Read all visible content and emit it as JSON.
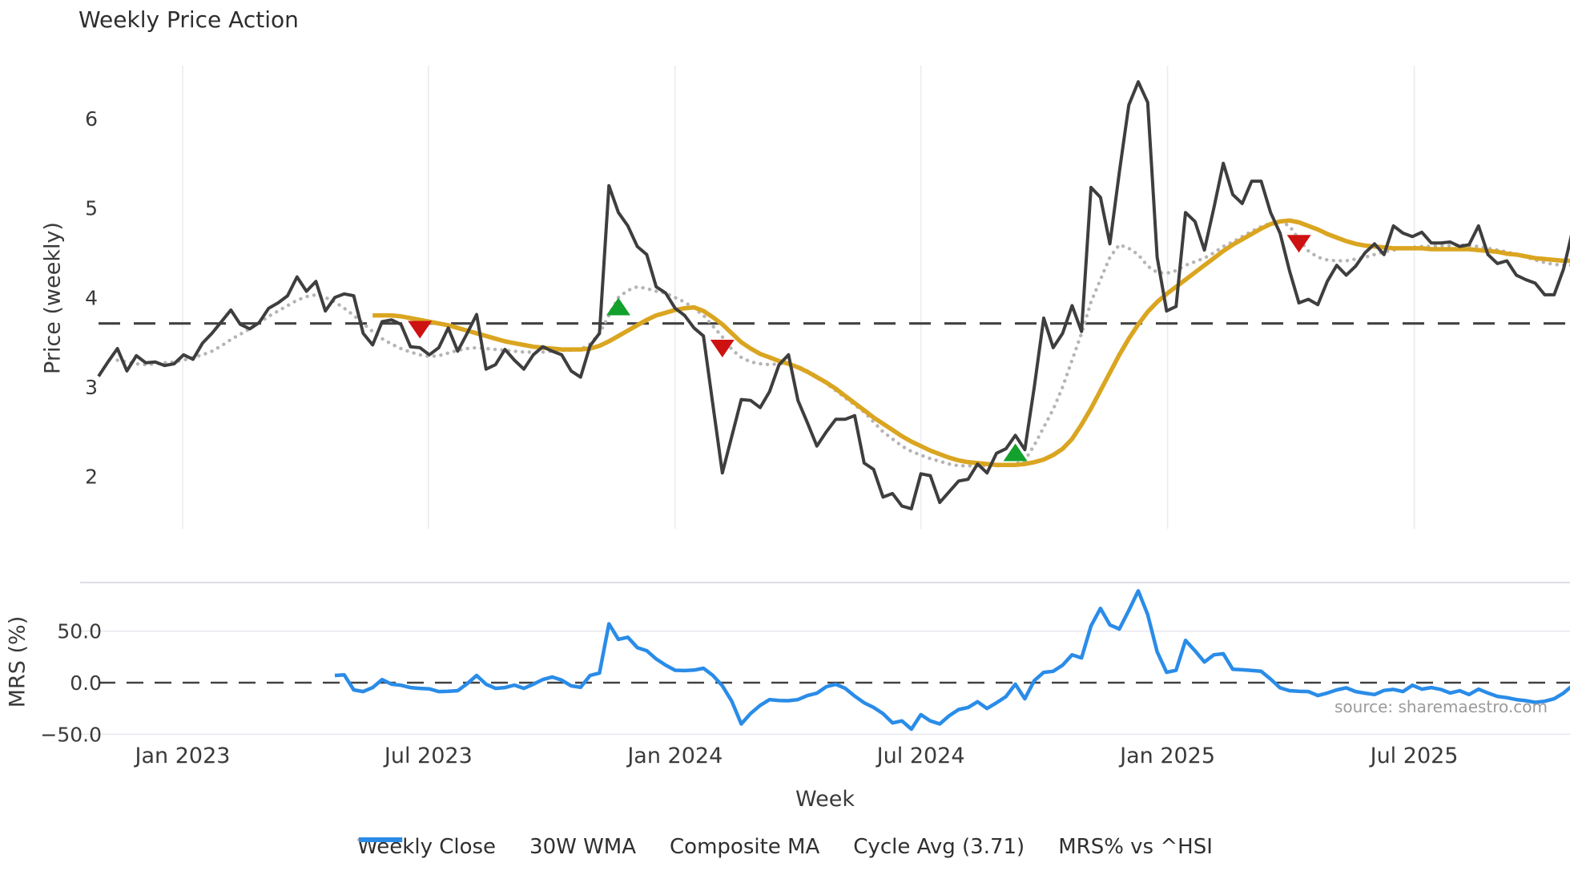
{
  "title": "Weekly Price Action",
  "source_text": "source: sharemaestro.com",
  "colors": {
    "weekly_close": "#3E3E3E",
    "wma": "#DAA520",
    "composite": "#B5B5B5",
    "cycle_avg": "#424242",
    "mrs": "#2A8CE8",
    "buy": "#14A02C",
    "sell": "#CE1212",
    "grid_vertical": "#E8ECF2",
    "grid_horizontal": "#E7E7EE",
    "panel_spine": "#D2D2DA",
    "tick_text": "#3A3A3A"
  },
  "axes": {
    "price_axis_label": "Price (weekly)",
    "mrs_axis_label": "MRS (%)",
    "x_axis_label": "Week",
    "price_tick_labels": [
      "6",
      "5",
      "4",
      "3",
      "2"
    ],
    "price_tick_values": [
      6,
      5,
      4,
      3,
      2
    ],
    "mrs_tick_labels": [
      "50.0",
      "0.0",
      "−50.0"
    ],
    "mrs_tick_values": [
      50,
      0,
      -50
    ],
    "x_tick_labels": [
      "Jan 2023",
      "Jul 2023",
      "Jan 2024",
      "Jul 2024",
      "Jan 2025",
      "Jul 2025"
    ],
    "x_tick_weeks": [
      8.9,
      34.9,
      61.0,
      87.0,
      113.1,
      139.2
    ]
  },
  "legend": [
    {
      "label": "Weekly Close",
      "style": "solid",
      "color_key": "weekly_close"
    },
    {
      "label": "30W WMA",
      "style": "solid",
      "color_key": "wma"
    },
    {
      "label": "Composite MA",
      "style": "dotted",
      "color_key": "composite"
    },
    {
      "label": "Cycle Avg (3.71)",
      "style": "dashed",
      "color_key": "cycle_avg"
    },
    {
      "label": "MRS% vs ^HSI",
      "style": "solid",
      "color_key": "mrs"
    }
  ],
  "chart_data": {
    "type": "line",
    "x_unit": "week",
    "x_range_weeks": [
      0,
      156
    ],
    "grid": "vertical-6month",
    "legend_position": "bottom-center",
    "panels": [
      {
        "name": "price",
        "ylabel": "Price (weekly)",
        "ylim": [
          1.42,
          6.61
        ],
        "cycle_avg": 3.71,
        "series": [
          {
            "name": "Weekly Close",
            "start_week": 0,
            "values": [
              3.12,
              3.28,
              3.43,
              3.18,
              3.35,
              3.27,
              3.28,
              3.24,
              3.26,
              3.36,
              3.31,
              3.49,
              3.6,
              3.73,
              3.86,
              3.7,
              3.65,
              3.72,
              3.88,
              3.94,
              4.02,
              4.23,
              4.07,
              4.18,
              3.85,
              4.0,
              4.04,
              4.02,
              3.6,
              3.47,
              3.73,
              3.75,
              3.7,
              3.45,
              3.44,
              3.36,
              3.44,
              3.66,
              3.4,
              3.6,
              3.81,
              3.2,
              3.25,
              3.42,
              3.3,
              3.2,
              3.36,
              3.45,
              3.4,
              3.36,
              3.18,
              3.11,
              3.46,
              3.6,
              5.25,
              4.95,
              4.8,
              4.57,
              4.48,
              4.12,
              4.05,
              3.88,
              3.8,
              3.66,
              3.57,
              2.8,
              2.04,
              2.45,
              2.86,
              2.85,
              2.77,
              2.95,
              3.25,
              3.36,
              2.85,
              2.6,
              2.34,
              2.5,
              2.64,
              2.64,
              2.68,
              2.15,
              2.08,
              1.77,
              1.81,
              1.67,
              1.64,
              2.03,
              2.01,
              1.71,
              1.83,
              1.95,
              1.97,
              2.14,
              2.04,
              2.26,
              2.31,
              2.46,
              2.3,
              3.0,
              3.77,
              3.44,
              3.6,
              3.91,
              3.62,
              5.23,
              5.12,
              4.6,
              5.4,
              6.15,
              6.41,
              6.18,
              4.45,
              3.85,
              3.9,
              4.95,
              4.85,
              4.53,
              5.0,
              5.5,
              5.15,
              5.05,
              5.3,
              5.3,
              4.95,
              4.72,
              4.3,
              3.94,
              3.98,
              3.92,
              4.18,
              4.36,
              4.25,
              4.35,
              4.5,
              4.6,
              4.48,
              4.8,
              4.72,
              4.68,
              4.73,
              4.61,
              4.61,
              4.62,
              4.57,
              4.59,
              4.8,
              4.48,
              4.38,
              4.41,
              4.25,
              4.2,
              4.16,
              4.03,
              4.03,
              4.32,
              4.77
            ]
          },
          {
            "name": "30W WMA",
            "start_week": 29,
            "values": [
              3.8,
              3.8,
              3.8,
              3.79,
              3.77,
              3.75,
              3.73,
              3.71,
              3.69,
              3.66,
              3.63,
              3.6,
              3.57,
              3.54,
              3.51,
              3.49,
              3.47,
              3.45,
              3.44,
              3.43,
              3.42,
              3.42,
              3.42,
              3.43,
              3.46,
              3.51,
              3.57,
              3.63,
              3.69,
              3.75,
              3.8,
              3.83,
              3.86,
              3.88,
              3.89,
              3.85,
              3.78,
              3.7,
              3.6,
              3.5,
              3.43,
              3.37,
              3.33,
              3.29,
              3.26,
              3.22,
              3.17,
              3.11,
              3.05,
              2.98,
              2.9,
              2.82,
              2.74,
              2.66,
              2.59,
              2.52,
              2.45,
              2.39,
              2.34,
              2.29,
              2.25,
              2.21,
              2.18,
              2.16,
              2.15,
              2.14,
              2.13,
              2.13,
              2.13,
              2.14,
              2.16,
              2.19,
              2.24,
              2.31,
              2.42,
              2.58,
              2.76,
              2.96,
              3.16,
              3.36,
              3.54,
              3.7,
              3.84,
              3.95,
              4.04,
              4.12,
              4.2,
              4.28,
              4.36,
              4.44,
              4.52,
              4.59,
              4.65,
              4.71,
              4.77,
              4.82,
              4.85,
              4.86,
              4.84,
              4.8,
              4.76,
              4.71,
              4.67,
              4.63,
              4.6,
              4.58,
              4.57,
              4.56,
              4.55,
              4.55,
              4.55,
              4.55,
              4.54,
              4.54,
              4.54,
              4.54,
              4.54,
              4.53,
              4.52,
              4.51,
              4.49,
              4.48,
              4.46,
              4.44,
              4.43,
              4.42,
              4.41,
              4.41
            ]
          },
          {
            "name": "Composite MA",
            "start_week": 2,
            "values": [
              3.3,
              3.28,
              3.26,
              3.25,
              3.26,
              3.27,
              3.28,
              3.3,
              3.33,
              3.36,
              3.4,
              3.46,
              3.53,
              3.59,
              3.65,
              3.72,
              3.79,
              3.85,
              3.91,
              3.97,
              4.01,
              4.03,
              4.0,
              3.95,
              3.88,
              3.8,
              3.71,
              3.62,
              3.54,
              3.48,
              3.43,
              3.39,
              3.36,
              3.34,
              3.35,
              3.38,
              3.41,
              3.43,
              3.44,
              3.43,
              3.42,
              3.41,
              3.4,
              3.39,
              3.39,
              3.39,
              3.4,
              3.41,
              3.41,
              3.42,
              3.48,
              3.6,
              3.8,
              4.0,
              4.08,
              4.12,
              4.1,
              4.07,
              4.05,
              4.0,
              3.95,
              3.88,
              3.8,
              3.68,
              3.56,
              3.42,
              3.33,
              3.28,
              3.26,
              3.25,
              3.26,
              3.26,
              3.23,
              3.18,
              3.12,
              3.04,
              2.96,
              2.88,
              2.8,
              2.72,
              2.61,
              2.5,
              2.42,
              2.34,
              2.28,
              2.24,
              2.2,
              2.17,
              2.14,
              2.12,
              2.12,
              2.12,
              2.12,
              2.12,
              2.13,
              2.14,
              2.18,
              2.35,
              2.55,
              2.75,
              3.0,
              3.3,
              3.6,
              3.95,
              4.2,
              4.45,
              4.59,
              4.55,
              4.48,
              4.35,
              4.28,
              4.27,
              4.3,
              4.36,
              4.4,
              4.44,
              4.5,
              4.57,
              4.62,
              4.68,
              4.74,
              4.79,
              4.83,
              4.85,
              4.8,
              4.65,
              4.52,
              4.45,
              4.42,
              4.41,
              4.41,
              4.43,
              4.45,
              4.48,
              4.51,
              4.53,
              4.55,
              4.56,
              4.57,
              4.57,
              4.58,
              4.58,
              4.59,
              4.58,
              4.57,
              4.55,
              4.53,
              4.51,
              4.48,
              4.45,
              4.42,
              4.39,
              4.37,
              4.36,
              4.36
            ]
          }
        ],
        "signals": {
          "buy": [
            {
              "week": 55,
              "price": 3.9
            },
            {
              "week": 97,
              "price": 2.27
            }
          ],
          "sell": [
            {
              "week": 34,
              "price": 3.64
            },
            {
              "week": 66,
              "price": 3.43
            },
            {
              "week": 127,
              "price": 4.6
            }
          ]
        }
      },
      {
        "name": "mrs",
        "ylabel": "MRS (%)",
        "ylim": [
          -60,
          97
        ],
        "zero_line": 0,
        "series": [
          {
            "name": "MRS% vs ^HSI",
            "start_week": 25,
            "values": [
              7,
              7.5,
              -7,
              -8.6,
              -4.7,
              3,
              -1.5,
              -2.5,
              -4.7,
              -5.5,
              -6,
              -8.6,
              -8.3,
              -7.8,
              -1,
              7,
              -1.5,
              -5.5,
              -4.7,
              -2.3,
              -5.5,
              -1.5,
              3,
              5.5,
              2.5,
              -3,
              -4.5,
              7,
              9.4,
              57,
              42,
              44,
              34,
              31,
              23,
              17,
              12,
              11.7,
              12.2,
              14,
              7,
              -3,
              -18,
              -40,
              -29.7,
              -22,
              -16.4,
              -17.2,
              -17.5,
              -16.4,
              -12.5,
              -10.2,
              -3.9,
              -1.6,
              -5.5,
              -13,
              -19.5,
              -24,
              -30,
              -39,
              -37,
              -45,
              -31,
              -37,
              -40,
              -32,
              -26,
              -24,
              -18.5,
              -25,
              -19.5,
              -13.5,
              -1.5,
              -15.6,
              2,
              10,
              11,
              17,
              27,
              24,
              55,
              72,
              56,
              52,
              70,
              89,
              66,
              30,
              10,
              12,
              41,
              31,
              20,
              27,
              28,
              13,
              12.5,
              11.8,
              11,
              3.5,
              -5,
              -7.8,
              -8.3,
              -8.6,
              -12.5,
              -10,
              -7,
              -5,
              -8.6,
              -10.2,
              -11.5,
              -7.5,
              -6.5,
              -8.6,
              -2.5,
              -6.3,
              -4.7,
              -6.5,
              -10,
              -7.8,
              -11.5,
              -6.3,
              -10,
              -13.3,
              -14.5,
              -16.4,
              -17.5,
              -19,
              -18,
              -15.6,
              -10,
              -2.3
            ]
          }
        ]
      }
    ]
  }
}
